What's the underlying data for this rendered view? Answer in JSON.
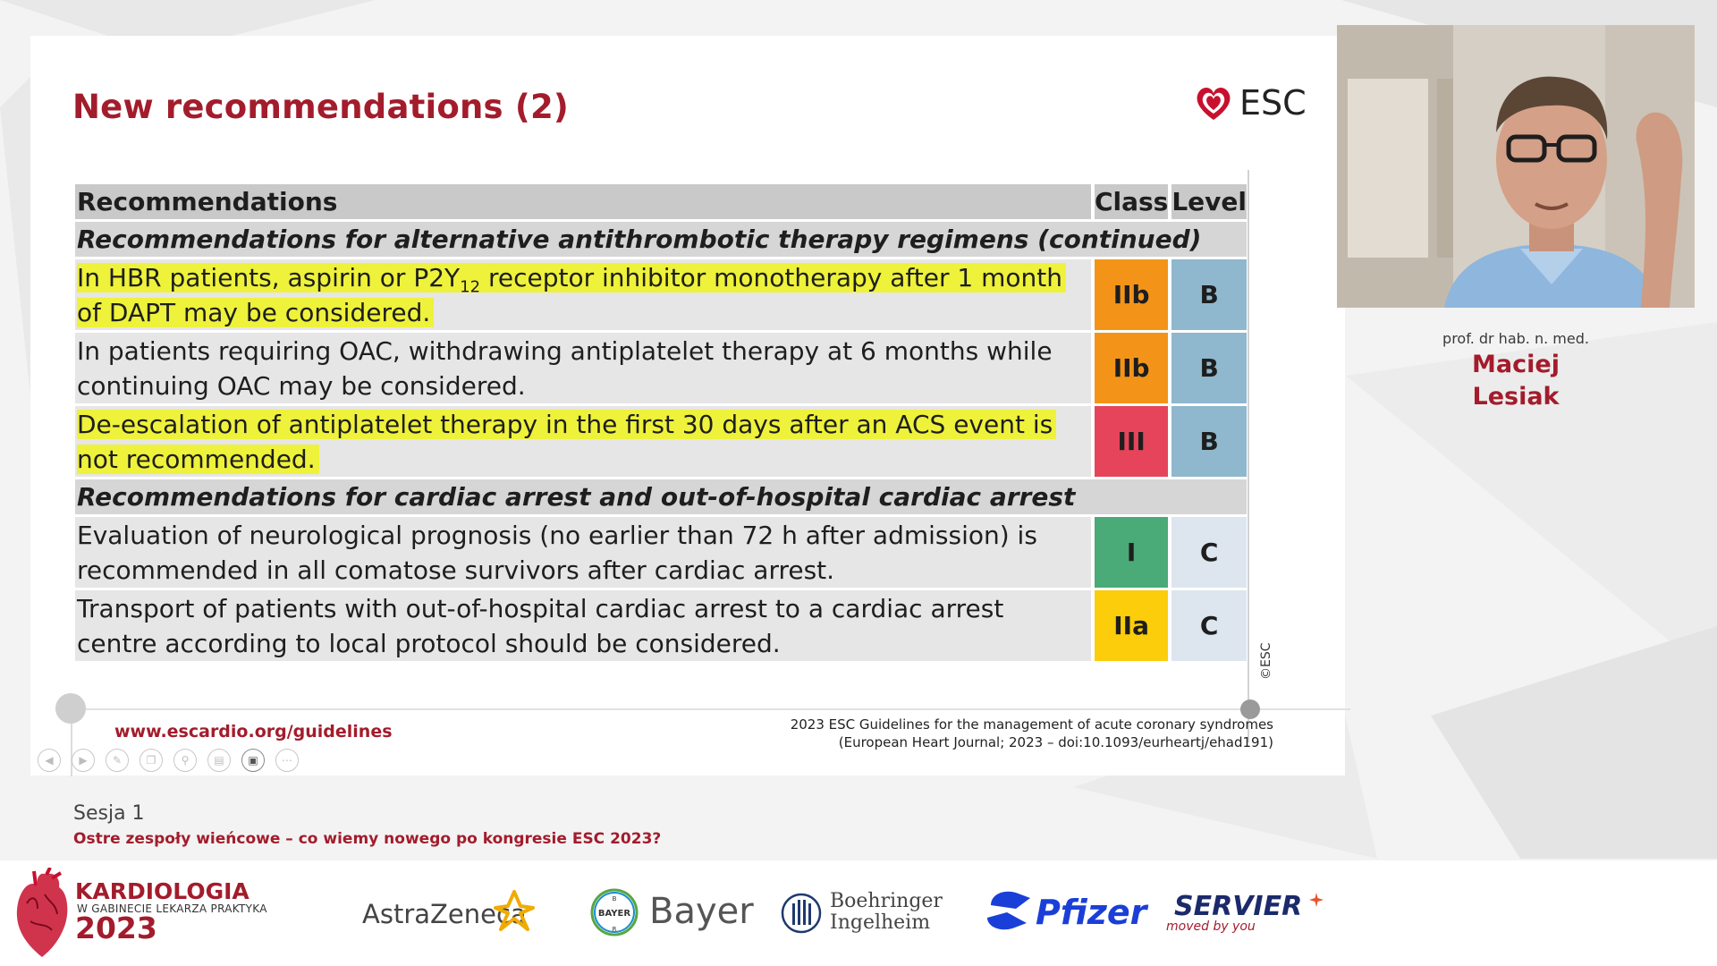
{
  "slide": {
    "title": "New recommendations (2)",
    "esc_logo_text": "ESC",
    "table": {
      "header": {
        "recommendations": "Recommendations",
        "class": "Class",
        "level": "Level"
      },
      "rows": [
        {
          "type": "section",
          "text": "Recommendations for alternative antithrombotic therapy regimens (continued)"
        },
        {
          "type": "rec",
          "text_pre": "In HBR patients, aspirin or P2Y",
          "text_sub": "12",
          "text_post": " receptor inhibitor monotherapy after 1 month of DAPT may be considered.",
          "class": "IIb",
          "level": "B",
          "highlighted": true
        },
        {
          "type": "rec",
          "text": "In patients requiring OAC, withdrawing antiplatelet therapy at 6 months while continuing OAC may be considered.",
          "class": "IIb",
          "level": "B",
          "highlighted": false
        },
        {
          "type": "rec",
          "text": "De-escalation of antiplatelet therapy in the first 30 days after an ACS event is not recommended.",
          "class": "III",
          "level": "B",
          "highlighted": true
        },
        {
          "type": "section",
          "text": "Recommendations for cardiac arrest and out-of-hospital cardiac arrest"
        },
        {
          "type": "rec",
          "text": "Evaluation of neurological prognosis (no earlier than 72 h after admission) is recommended in all comatose survivors after cardiac arrest.",
          "class": "I",
          "level": "C",
          "highlighted": false
        },
        {
          "type": "rec",
          "text": "Transport of patients with out-of-hospital cardiac arrest to a cardiac arrest centre according to local protocol should be considered.",
          "class": "IIa",
          "level": "C",
          "highlighted": false
        }
      ]
    },
    "copyright": "©ESC",
    "website": "www.escardio.org/guidelines",
    "citation_line1": "2023 ESC Guidelines for the management of acute coronary syndromes",
    "citation_line2": "(European Heart Journal; 2023 – doi:10.1093/eurheartj/ehad191)"
  },
  "speaker": {
    "subtitle": "prof. dr hab. n. med.",
    "first_name": "Maciej",
    "last_name": "Lesiak"
  },
  "session": {
    "label": "Sesja 1",
    "title": "Ostre zespoły wieńcowe – co wiemy nowego po kongresie ESC 2023?"
  },
  "footer": {
    "event_title": "KARDIOLOGIA",
    "event_subtitle": "W GABINECIE LEKARZA PRAKTYKA",
    "event_year": "2023",
    "sponsors": {
      "astrazeneca": "AstraZeneca",
      "bayer": "Bayer",
      "bayer_cross": "BAYER",
      "boehringer_1": "Boehringer",
      "boehringer_2": "Ingelheim",
      "pfizer": "Pfizer",
      "servier": "SERVIER",
      "servier_tagline": "moved by you"
    }
  },
  "colors": {
    "brand_red": "#a31c2c",
    "class_IIb": "#f39419",
    "class_III": "#e5445a",
    "class_I": "#4aaa78",
    "class_IIa": "#fbcd0a",
    "level_B": "#8fb7cd",
    "level_C": "#dde6ef",
    "highlight": "#eef23a"
  },
  "player_controls": [
    "previous-icon",
    "play-icon",
    "pen-icon",
    "copy-icon",
    "zoom-icon",
    "subtitles-icon",
    "camera-icon",
    "more-icon"
  ]
}
